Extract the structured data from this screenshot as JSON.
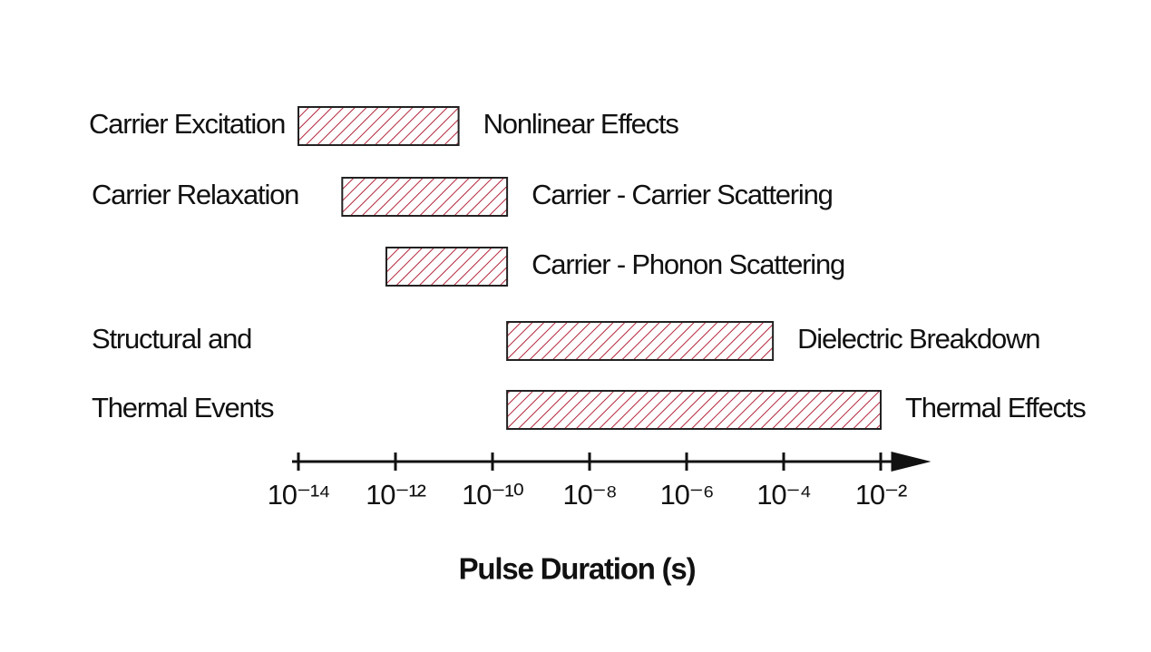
{
  "chart_data": {
    "type": "range-bar",
    "row_labels": [
      "Carrier Excitation",
      "Carrier Relaxation",
      "Structural and",
      "Thermal Events"
    ],
    "bars": [
      {
        "label": "Nonlinear Effects",
        "range": [
          1e-14,
          2e-11
        ]
      },
      {
        "label": "Carrier - Carrier Scattering",
        "range": [
          8e-14,
          2e-10
        ]
      },
      {
        "label": "Carrier - Phonon Scattering",
        "range": [
          6.5e-13,
          2e-10
        ]
      },
      {
        "label": "Dielectric Breakdown",
        "range": [
          2e-10,
          6e-05
        ]
      },
      {
        "label": "Thermal Effects",
        "range": [
          2e-10,
          0.01
        ]
      }
    ],
    "xlabel": "Pulse Duration (s)",
    "xscale": "log",
    "xlim": [
      1e-14,
      0.1
    ],
    "xticks": [
      {
        "value": 1e-14,
        "label": "10⁻¹⁴"
      },
      {
        "value": 1e-12,
        "label": "10⁻¹²"
      },
      {
        "value": 1e-10,
        "label": "10⁻¹⁰"
      },
      {
        "value": 1e-08,
        "label": "10⁻⁸"
      },
      {
        "value": 1e-06,
        "label": "10⁻⁶"
      },
      {
        "value": 0.0001,
        "label": "10⁻⁴"
      },
      {
        "value": 0.01,
        "label": "10⁻²"
      }
    ],
    "color": "#b3263b",
    "hatch": true
  }
}
